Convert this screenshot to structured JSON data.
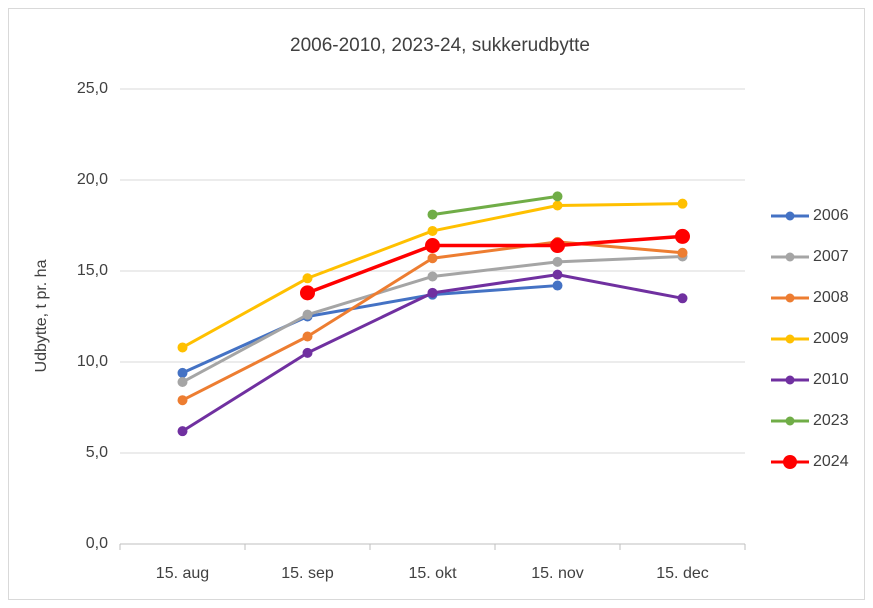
{
  "chart_data": {
    "type": "line",
    "title": "2006-2010, 2023-24, sukkerudbytte",
    "y_label": "Udbytte, t pr. ha",
    "categories": [
      "15. aug",
      "15. sep",
      "15. okt",
      "15. nov",
      "15. dec"
    ],
    "series": [
      {
        "name": "2006",
        "color": "#4472c4",
        "values": [
          9.4,
          12.5,
          13.7,
          14.2,
          null
        ]
      },
      {
        "name": "2007",
        "color": "#a5a5a5",
        "values": [
          8.9,
          12.6,
          14.7,
          15.5,
          15.8
        ]
      },
      {
        "name": "2008",
        "color": "#ed7d31",
        "values": [
          7.9,
          11.4,
          15.7,
          16.6,
          16.0
        ]
      },
      {
        "name": "2009",
        "color": "#ffc000",
        "values": [
          10.8,
          14.6,
          17.2,
          18.6,
          18.7
        ]
      },
      {
        "name": "2010",
        "color": "#7030a0",
        "values": [
          6.2,
          10.5,
          13.8,
          14.8,
          13.5
        ]
      },
      {
        "name": "2023",
        "color": "#70ad47",
        "values": [
          null,
          null,
          18.1,
          19.1,
          null
        ]
      },
      {
        "name": "2024",
        "color": "#ff0000",
        "values": [
          null,
          13.8,
          16.4,
          16.4,
          16.9
        ]
      }
    ],
    "ylim": [
      0,
      25
    ],
    "yticks": [
      {
        "value": 0,
        "label": "0,0"
      },
      {
        "value": 5,
        "label": "5,0"
      },
      {
        "value": 10,
        "label": "10,0"
      },
      {
        "value": 15,
        "label": "15,0"
      },
      {
        "value": 20,
        "label": "20,0"
      },
      {
        "value": 25,
        "label": "25,0"
      }
    ],
    "grid": true,
    "legend": "right"
  }
}
